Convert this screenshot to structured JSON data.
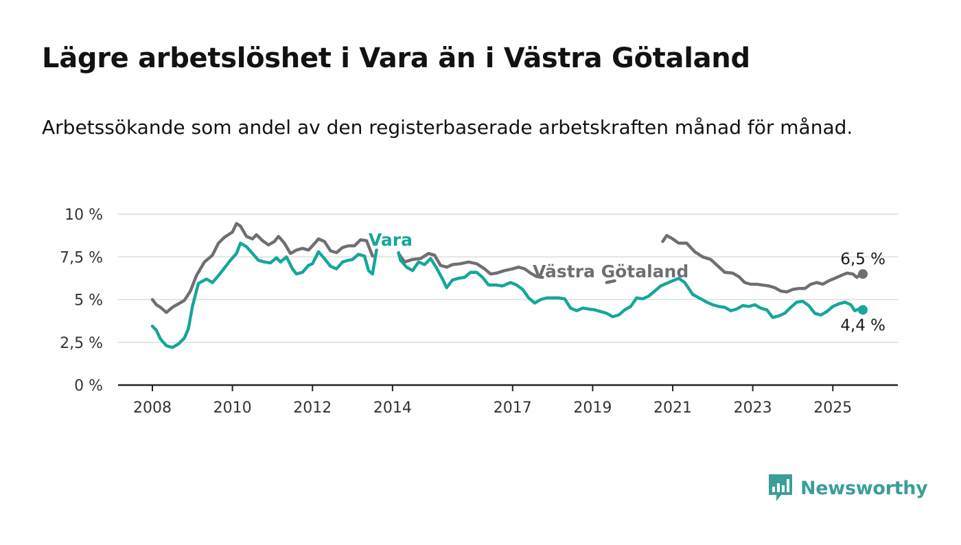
{
  "title": "Lägre arbetslöshet i Vara än i Västra Götaland",
  "subtitle": "Arbetssökande som andel av den registerbaserade arbetskraften månad för månad.",
  "logo": {
    "text": "Newsworthy",
    "icon": "newsworthy-chart-bubble-icon"
  },
  "colors": {
    "vara": "#16a69a",
    "vastra_gotaland": "#6f6e73",
    "grid": "#dcdcdc",
    "axis": "#222222"
  },
  "chart_data": {
    "type": "line",
    "title": "Lägre arbetslöshet i Vara än i Västra Götaland",
    "subtitle": "Arbetssökande som andel av den registerbaserade arbetskraften månad för månad.",
    "xlabel": "",
    "ylabel": "",
    "xlim": [
      2007.8,
      2026.4
    ],
    "ylim": [
      0,
      10
    ],
    "y_ticks": [
      0,
      2.5,
      5,
      7.5,
      10
    ],
    "y_tick_labels": [
      "0 %",
      "2,5 %",
      "5 %",
      "7,5 %",
      "10 %"
    ],
    "x_ticks": [
      2008,
      2010,
      2012,
      2014,
      2017,
      2019,
      2021,
      2023,
      2025
    ],
    "x_tick_labels": [
      "2008",
      "2010",
      "2012",
      "2014",
      "2017",
      "2019",
      "2021",
      "2023",
      "2025"
    ],
    "grid": true,
    "legend": "inline labels",
    "series": [
      {
        "name": "Västra Götaland",
        "color": "#6f6e73",
        "end_label": "6,5 %",
        "points": [
          [
            2008.0,
            5.0
          ],
          [
            2008.1,
            4.7
          ],
          [
            2008.2,
            4.55
          ],
          [
            2008.35,
            4.25
          ],
          [
            2008.5,
            4.55
          ],
          [
            2008.65,
            4.75
          ],
          [
            2008.8,
            4.95
          ],
          [
            2008.95,
            5.5
          ],
          [
            2009.1,
            6.4
          ],
          [
            2009.3,
            7.2
          ],
          [
            2009.5,
            7.6
          ],
          [
            2009.65,
            8.3
          ],
          [
            2009.8,
            8.65
          ],
          [
            2010.0,
            8.95
          ],
          [
            2010.1,
            9.45
          ],
          [
            2010.2,
            9.3
          ],
          [
            2010.35,
            8.7
          ],
          [
            2010.5,
            8.55
          ],
          [
            2010.6,
            8.8
          ],
          [
            2010.75,
            8.45
          ],
          [
            2010.9,
            8.2
          ],
          [
            2011.05,
            8.4
          ],
          [
            2011.15,
            8.7
          ],
          [
            2011.3,
            8.3
          ],
          [
            2011.45,
            7.7
          ],
          [
            2011.6,
            7.9
          ],
          [
            2011.75,
            8.0
          ],
          [
            2011.9,
            7.9
          ],
          [
            2012.0,
            8.15
          ],
          [
            2012.15,
            8.55
          ],
          [
            2012.3,
            8.4
          ],
          [
            2012.45,
            7.85
          ],
          [
            2012.6,
            7.75
          ],
          [
            2012.75,
            8.05
          ],
          [
            2012.9,
            8.15
          ],
          [
            2013.05,
            8.15
          ],
          [
            2013.2,
            8.5
          ],
          [
            2013.35,
            8.45
          ],
          [
            2013.5,
            7.55
          ],
          [
            2014.15,
            7.7
          ],
          [
            2014.3,
            7.2
          ],
          [
            2014.5,
            7.35
          ],
          [
            2014.7,
            7.4
          ],
          [
            2014.9,
            7.7
          ],
          [
            2015.05,
            7.6
          ],
          [
            2015.2,
            7.0
          ],
          [
            2015.35,
            6.9
          ],
          [
            2015.5,
            7.05
          ],
          [
            2015.7,
            7.1
          ],
          [
            2015.9,
            7.2
          ],
          [
            2016.1,
            7.1
          ],
          [
            2016.3,
            6.8
          ],
          [
            2016.45,
            6.5
          ],
          [
            2016.6,
            6.55
          ],
          [
            2016.8,
            6.7
          ],
          [
            2017.0,
            6.8
          ],
          [
            2017.15,
            6.9
          ],
          [
            2017.3,
            6.8
          ],
          [
            2017.45,
            6.55
          ],
          [
            2017.6,
            6.35
          ],
          [
            2017.75,
            6.3
          ],
          [
            2019.35,
            6.0
          ],
          [
            2019.55,
            6.1
          ],
          [
            2020.75,
            8.4
          ],
          [
            2020.85,
            8.75
          ],
          [
            2021.0,
            8.55
          ],
          [
            2021.15,
            8.3
          ],
          [
            2021.35,
            8.3
          ],
          [
            2021.55,
            7.8
          ],
          [
            2021.75,
            7.5
          ],
          [
            2021.95,
            7.35
          ],
          [
            2022.3,
            6.6
          ],
          [
            2022.5,
            6.55
          ],
          [
            2022.65,
            6.35
          ],
          [
            2022.8,
            6.0
          ],
          [
            2022.95,
            5.9
          ],
          [
            2023.1,
            5.9
          ],
          [
            2023.25,
            5.85
          ],
          [
            2023.4,
            5.8
          ],
          [
            2023.55,
            5.7
          ],
          [
            2023.7,
            5.5
          ],
          [
            2023.85,
            5.45
          ],
          [
            2024.0,
            5.6
          ],
          [
            2024.15,
            5.65
          ],
          [
            2024.3,
            5.65
          ],
          [
            2024.45,
            5.9
          ],
          [
            2024.6,
            6.0
          ],
          [
            2024.75,
            5.9
          ],
          [
            2024.9,
            6.1
          ],
          [
            2025.05,
            6.25
          ],
          [
            2025.2,
            6.4
          ],
          [
            2025.35,
            6.55
          ],
          [
            2025.5,
            6.5
          ],
          [
            2025.6,
            6.3
          ],
          [
            2025.65,
            6.4
          ],
          [
            2025.75,
            6.5
          ]
        ]
      },
      {
        "name": "Vara",
        "color": "#16a69a",
        "end_label": "4,4 %",
        "points": [
          [
            2008.0,
            3.45
          ],
          [
            2008.1,
            3.2
          ],
          [
            2008.2,
            2.7
          ],
          [
            2008.35,
            2.3
          ],
          [
            2008.5,
            2.2
          ],
          [
            2008.65,
            2.4
          ],
          [
            2008.8,
            2.75
          ],
          [
            2008.9,
            3.3
          ],
          [
            2009.0,
            4.6
          ],
          [
            2009.15,
            5.95
          ],
          [
            2009.35,
            6.2
          ],
          [
            2009.5,
            6.0
          ],
          [
            2009.65,
            6.4
          ],
          [
            2009.8,
            6.85
          ],
          [
            2009.95,
            7.3
          ],
          [
            2010.1,
            7.7
          ],
          [
            2010.2,
            8.3
          ],
          [
            2010.35,
            8.1
          ],
          [
            2010.5,
            7.7
          ],
          [
            2010.65,
            7.3
          ],
          [
            2010.8,
            7.2
          ],
          [
            2010.95,
            7.15
          ],
          [
            2011.1,
            7.45
          ],
          [
            2011.2,
            7.2
          ],
          [
            2011.35,
            7.5
          ],
          [
            2011.5,
            6.8
          ],
          [
            2011.6,
            6.5
          ],
          [
            2011.75,
            6.6
          ],
          [
            2011.9,
            7.0
          ],
          [
            2012.0,
            7.1
          ],
          [
            2012.15,
            7.8
          ],
          [
            2012.3,
            7.4
          ],
          [
            2012.45,
            6.95
          ],
          [
            2012.6,
            6.8
          ],
          [
            2012.75,
            7.2
          ],
          [
            2012.9,
            7.3
          ],
          [
            2013.0,
            7.35
          ],
          [
            2013.15,
            7.65
          ],
          [
            2013.3,
            7.55
          ],
          [
            2013.4,
            6.7
          ],
          [
            2013.5,
            6.5
          ],
          [
            2013.6,
            7.9
          ],
          [
            2014.15,
            7.75
          ],
          [
            2014.2,
            7.3
          ],
          [
            2014.35,
            6.9
          ],
          [
            2014.5,
            6.7
          ],
          [
            2014.65,
            7.2
          ],
          [
            2014.8,
            7.05
          ],
          [
            2014.95,
            7.4
          ],
          [
            2015.1,
            6.85
          ],
          [
            2015.25,
            6.2
          ],
          [
            2015.35,
            5.7
          ],
          [
            2015.5,
            6.15
          ],
          [
            2015.65,
            6.25
          ],
          [
            2015.8,
            6.3
          ],
          [
            2015.95,
            6.6
          ],
          [
            2016.1,
            6.6
          ],
          [
            2016.25,
            6.3
          ],
          [
            2016.4,
            5.85
          ],
          [
            2016.6,
            5.85
          ],
          [
            2016.75,
            5.8
          ],
          [
            2016.95,
            6.0
          ],
          [
            2017.1,
            5.85
          ],
          [
            2017.25,
            5.6
          ],
          [
            2017.4,
            5.1
          ],
          [
            2017.55,
            4.8
          ],
          [
            2017.7,
            5.0
          ],
          [
            2017.85,
            5.1
          ],
          [
            2018.0,
            5.1
          ],
          [
            2018.15,
            5.1
          ],
          [
            2018.3,
            5.05
          ],
          [
            2018.45,
            4.5
          ],
          [
            2018.6,
            4.35
          ],
          [
            2018.75,
            4.5
          ],
          [
            2018.9,
            4.45
          ],
          [
            2019.05,
            4.4
          ],
          [
            2019.2,
            4.3
          ],
          [
            2019.35,
            4.2
          ],
          [
            2019.5,
            4.0
          ],
          [
            2019.65,
            4.1
          ],
          [
            2019.8,
            4.4
          ],
          [
            2019.95,
            4.6
          ],
          [
            2020.1,
            5.1
          ],
          [
            2020.25,
            5.05
          ],
          [
            2020.4,
            5.2
          ],
          [
            2020.55,
            5.5
          ],
          [
            2020.7,
            5.8
          ],
          [
            2020.85,
            5.95
          ],
          [
            2021.0,
            6.1
          ],
          [
            2021.15,
            6.25
          ],
          [
            2021.3,
            6.0
          ],
          [
            2021.5,
            5.3
          ],
          [
            2021.7,
            5.05
          ],
          [
            2021.85,
            4.85
          ],
          [
            2022.0,
            4.7
          ],
          [
            2022.15,
            4.6
          ],
          [
            2022.3,
            4.55
          ],
          [
            2022.45,
            4.35
          ],
          [
            2022.6,
            4.45
          ],
          [
            2022.75,
            4.65
          ],
          [
            2022.9,
            4.6
          ],
          [
            2023.05,
            4.7
          ],
          [
            2023.2,
            4.5
          ],
          [
            2023.35,
            4.4
          ],
          [
            2023.5,
            3.95
          ],
          [
            2023.65,
            4.05
          ],
          [
            2023.8,
            4.2
          ],
          [
            2023.95,
            4.55
          ],
          [
            2024.1,
            4.85
          ],
          [
            2024.25,
            4.9
          ],
          [
            2024.4,
            4.65
          ],
          [
            2024.55,
            4.2
          ],
          [
            2024.7,
            4.1
          ],
          [
            2024.85,
            4.3
          ],
          [
            2025.0,
            4.6
          ],
          [
            2025.15,
            4.75
          ],
          [
            2025.3,
            4.85
          ],
          [
            2025.45,
            4.7
          ],
          [
            2025.55,
            4.35
          ],
          [
            2025.65,
            4.45
          ],
          [
            2025.75,
            4.4
          ]
        ]
      }
    ],
    "series_label_positions": [
      {
        "series": "Vara",
        "text": "Vara",
        "at": [
          2013.95,
          8.15
        ]
      },
      {
        "series": "Västra Götaland",
        "text": "Västra Götaland",
        "at": [
          2019.45,
          6.3
        ]
      }
    ]
  }
}
